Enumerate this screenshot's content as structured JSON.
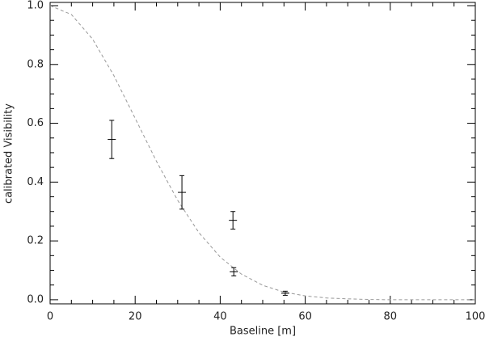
{
  "chart_data": {
    "type": "scatter",
    "xlabel": "Baseline [m]",
    "ylabel": "calibrated Visibility",
    "xlim": [
      0,
      100
    ],
    "ylim": [
      -0.014,
      1.011
    ],
    "xticks": [
      0,
      20,
      40,
      60,
      80,
      100
    ],
    "yticks": [
      {
        "value": 0,
        "label": "0.0"
      },
      0.2,
      0.4,
      0.6,
      0.8,
      {
        "value": 1,
        "label": "1.0"
      }
    ],
    "series": [
      {
        "type": "line",
        "color": "#999999",
        "dashed": true,
        "x": [
          0,
          5,
          10,
          15,
          20,
          25,
          30,
          35,
          40,
          45,
          50,
          55,
          60,
          65,
          70,
          75,
          80,
          85,
          90,
          95,
          100
        ],
        "values": [
          1.0,
          0.97,
          0.886,
          0.762,
          0.617,
          0.471,
          0.338,
          0.228,
          0.145,
          0.087,
          0.049,
          0.026,
          0.013,
          0.006,
          0.003,
          0.001,
          0.0,
          0.0,
          0.0,
          0.0,
          0.0
        ]
      },
      {
        "type": "errorbar",
        "color": "#000000",
        "x": [
          14.5,
          31,
          43,
          43.2,
          55.3
        ],
        "values": [
          0.545,
          0.365,
          0.27,
          0.095,
          0.022
        ],
        "errors": [
          0.065,
          0.057,
          0.03,
          0.014,
          0.007
        ]
      }
    ]
  }
}
